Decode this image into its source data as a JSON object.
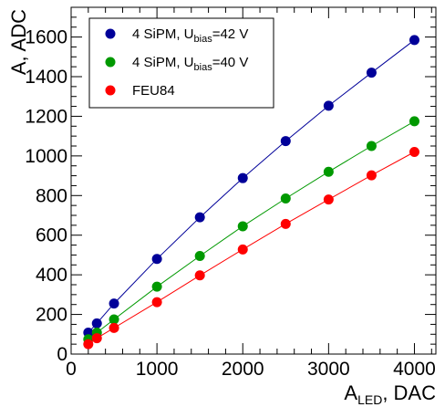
{
  "chart_data": {
    "type": "scatter",
    "xlabel": {
      "main": "A",
      "sub": "LED",
      "suffix": ", DAC"
    },
    "ylabel": "A, ADC",
    "xlim": [
      0,
      4250
    ],
    "ylim": [
      0,
      1750
    ],
    "x_ticks": [
      0,
      1000,
      2000,
      3000,
      4000
    ],
    "y_ticks": [
      0,
      200,
      400,
      600,
      800,
      1000,
      1200,
      1400,
      1600
    ],
    "grid": false,
    "legend_position": "top-left",
    "series": [
      {
        "legend": {
          "main": "4 SiPM, U",
          "sub": "bias",
          "suffix": "=42 V"
        },
        "color": "#000099",
        "x": [
          200,
          300,
          500,
          1000,
          1500,
          2000,
          2500,
          3000,
          3500,
          4000
        ],
        "y": [
          108,
          155,
          255,
          480,
          690,
          888,
          1075,
          1253,
          1420,
          1585
        ]
      },
      {
        "legend": {
          "main": "4 SiPM, U",
          "sub": "bias",
          "suffix": "=40 V"
        },
        "color": "#009900",
        "x": [
          200,
          300,
          500,
          1000,
          1500,
          2000,
          2500,
          3000,
          3500,
          4000
        ],
        "y": [
          75,
          108,
          175,
          340,
          495,
          645,
          785,
          920,
          1050,
          1175
        ]
      },
      {
        "legend": {
          "main": "FEU84",
          "sub": "",
          "suffix": ""
        },
        "color": "#ff0000",
        "x": [
          200,
          300,
          500,
          1000,
          1500,
          2000,
          2500,
          3000,
          3500,
          4000
        ],
        "y": [
          50,
          80,
          132,
          262,
          397,
          528,
          657,
          780,
          902,
          1020
        ]
      }
    ]
  }
}
